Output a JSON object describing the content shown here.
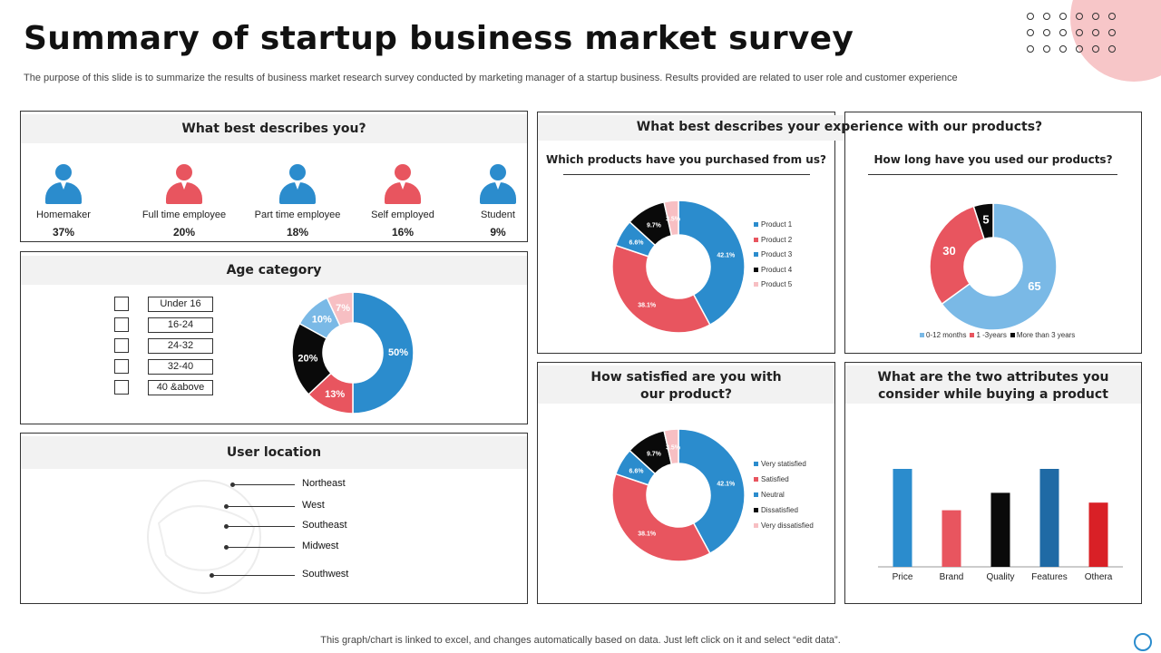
{
  "title": "Summary of startup business market survey",
  "subtitle": "The purpose of this slide is to summarize the results of business market research survey conducted by marketing manager of a startup business. Results provided are related to user role and customer experience",
  "footer": "This graph/chart is linked to excel,  and changes automatically based on data. Just left click on it and select “edit data”.",
  "colors": {
    "blue": "#2b8ccd",
    "red": "#e8555f",
    "black": "#0a0a0a",
    "pink": "#f7bfc3",
    "lightblue": "#7ab9e6",
    "darkblue": "#1f6aa5",
    "crimson": "#d92026"
  },
  "describes": {
    "heading": "What best describes you?",
    "personas": [
      {
        "label": "Homemaker",
        "pct": "37%",
        "color": "#2b8ccd",
        "icon": "person-icon"
      },
      {
        "label": "Full time employee",
        "pct": "20%",
        "color": "#e8555f",
        "icon": "person-icon"
      },
      {
        "label": "Part time employee",
        "pct": "18%",
        "color": "#2b8ccd",
        "icon": "person-icon"
      },
      {
        "label": "Self employed",
        "pct": "16%",
        "color": "#e8555f",
        "icon": "person-icon"
      },
      {
        "label": "Student",
        "pct": "9%",
        "color": "#2b8ccd",
        "icon": "person-icon"
      }
    ]
  },
  "age": {
    "heading": "Age category",
    "categories": [
      "Under 16",
      "16-24",
      "24-32",
      "32-40",
      "40 &above"
    ]
  },
  "location": {
    "heading": "User location",
    "regions": [
      "Northeast",
      "West",
      "Southeast",
      "Midwest",
      "Southwest"
    ]
  },
  "experience": {
    "heading": "What best describes your experience with our products?",
    "purchased_heading": "Which products have you purchased from us?",
    "duration_heading": "How long have you used our products?"
  },
  "satisfaction": {
    "heading_line1": "How satisfied are you with",
    "heading_line2": "our product?"
  },
  "attributes": {
    "heading_line1": "What are the two attributes you",
    "heading_line2": "consider while buying a product"
  },
  "chart_data": [
    {
      "id": "age",
      "type": "pie",
      "title": "Age category",
      "slices": [
        {
          "label": "50%",
          "value": 50,
          "color": "#2b8ccd"
        },
        {
          "label": "13%",
          "value": 13,
          "color": "#e8555f"
        },
        {
          "label": "20%",
          "value": 20,
          "color": "#0a0a0a"
        },
        {
          "label": "10%",
          "value": 10,
          "color": "#7ab9e6"
        },
        {
          "label": "7%",
          "value": 7,
          "color": "#f7bfc3"
        }
      ]
    },
    {
      "id": "purchased",
      "type": "pie",
      "title": "Which products have you purchased from us?",
      "slices": [
        {
          "name": "Product 1",
          "label": "42.1%",
          "value": 42.1,
          "color": "#2b8ccd"
        },
        {
          "name": "Product 2",
          "label": "38.1%",
          "value": 38.1,
          "color": "#e8555f"
        },
        {
          "name": "Product 3",
          "label": "6.6%",
          "value": 6.6,
          "color": "#2b8ccd"
        },
        {
          "name": "Product 4",
          "label": "9.7%",
          "value": 9.7,
          "color": "#0a0a0a"
        },
        {
          "name": "Product 5",
          "label": "3.5%",
          "value": 3.5,
          "color": "#f7bfc3"
        }
      ]
    },
    {
      "id": "duration",
      "type": "pie",
      "title": "How long have you used our products?",
      "slices": [
        {
          "name": "0-12 months",
          "label": "65",
          "value": 65,
          "color": "#7ab9e6"
        },
        {
          "name": "1 -3years",
          "label": "30",
          "value": 30,
          "color": "#e8555f"
        },
        {
          "name": "More than 3 years",
          "label": "5",
          "value": 5,
          "color": "#0a0a0a"
        }
      ]
    },
    {
      "id": "satisfaction",
      "type": "pie",
      "title": "How satisfied are you with our product?",
      "slices": [
        {
          "name": "Very statisfied",
          "label": "42.1%",
          "value": 42.1,
          "color": "#2b8ccd"
        },
        {
          "name": "Satisfied",
          "label": "38.1%",
          "value": 38.1,
          "color": "#e8555f"
        },
        {
          "name": "Neutral",
          "label": "6.6%",
          "value": 6.6,
          "color": "#2b8ccd"
        },
        {
          "name": "Dissatisfied",
          "label": "9.7%",
          "value": 9.7,
          "color": "#0a0a0a"
        },
        {
          "name": "Very dissatisfied",
          "label": "3.5%",
          "value": 3.5,
          "color": "#f7bfc3"
        }
      ]
    },
    {
      "id": "attributes",
      "type": "bar",
      "title": "What are the two attributes you consider while buying a product",
      "categories": [
        "Price",
        "Brand",
        "Quality",
        "Features",
        "Othera"
      ],
      "values": [
        90,
        52,
        68,
        90,
        59
      ],
      "colors": [
        "#2b8ccd",
        "#e8555f",
        "#0a0a0a",
        "#1f6aa5",
        "#d92026"
      ],
      "ylim": [
        0,
        100
      ],
      "xlabel": "",
      "ylabel": "",
      "grid": false
    }
  ]
}
